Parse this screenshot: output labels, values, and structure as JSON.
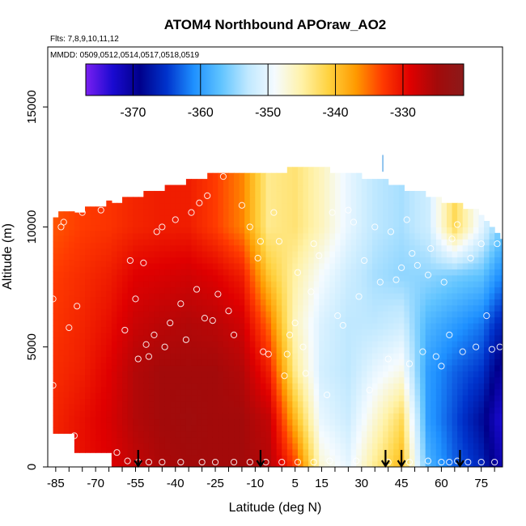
{
  "chart_data": {
    "type": "heatmap",
    "title": "ATOM4 Northbound APOraw_AO2",
    "flights_text": "Flts: 7,8,9,10,11,12",
    "dates_text": "MMDD: 0509,0512,0514,0517,0518,0519",
    "xlabel": "Latitude (deg N)",
    "ylabel": "Altitude (m)",
    "xlim": [
      -88,
      83
    ],
    "ylim": [
      0,
      17500
    ],
    "x_ticks": [
      -85,
      -70,
      -55,
      -40,
      -25,
      -10,
      5,
      15,
      30,
      45,
      60,
      75
    ],
    "y_ticks": [
      0,
      5000,
      10000,
      15000
    ],
    "colorbar": {
      "range": [
        -377,
        -321
      ],
      "ticks": [
        -370,
        -360,
        -350,
        -340,
        -330
      ],
      "colors": [
        "#7a1ff2",
        "#1a0ad0",
        "#00008b",
        "#0033cc",
        "#1e90ff",
        "#5fc3ff",
        "#bfe8ff",
        "#f5fbff",
        "#fff2a8",
        "#ffd23f",
        "#ff9a00",
        "#ff3a00",
        "#e00000",
        "#a30a0a",
        "#8b1a1a"
      ]
    },
    "profiles": [
      {
        "lat": -85,
        "top": 10500,
        "values": [
          -331,
          -331.5,
          -332,
          -332.5,
          -333,
          -334
        ]
      },
      {
        "lat": -75,
        "top": 10700,
        "values": [
          -330,
          -330,
          -331,
          -331.5,
          -332,
          -333
        ]
      },
      {
        "lat": -65,
        "top": 11000,
        "values": [
          -329,
          -328.5,
          -329,
          -330,
          -331,
          -332.5
        ]
      },
      {
        "lat": -55,
        "top": 11300,
        "values": [
          -327,
          -326,
          -326,
          -327.5,
          -329,
          -331.5
        ]
      },
      {
        "lat": -45,
        "top": 11600,
        "values": [
          -325.5,
          -325,
          -325,
          -326.5,
          -328.5,
          -331
        ]
      },
      {
        "lat": -35,
        "top": 11900,
        "values": [
          -325,
          -324.5,
          -325,
          -326,
          -328,
          -331
        ]
      },
      {
        "lat": -25,
        "top": 12200,
        "values": [
          -325,
          -325,
          -325,
          -326.5,
          -329,
          -333
        ]
      },
      {
        "lat": -15,
        "top": 12200,
        "values": [
          -325,
          -325,
          -326,
          -328,
          -331,
          -336
        ]
      },
      {
        "lat": -5,
        "top": 12300,
        "values": [
          -326,
          -327,
          -331,
          -335,
          -340,
          -344
        ]
      },
      {
        "lat": 5,
        "top": 12400,
        "values": [
          -333,
          -339,
          -344,
          -346,
          -345,
          -343
        ]
      },
      {
        "lat": 15,
        "top": 12400,
        "values": [
          -347,
          -350,
          -351.5,
          -351,
          -349,
          -346
        ]
      },
      {
        "lat": 25,
        "top": 12300,
        "values": [
          -350,
          -352,
          -353,
          -353,
          -352,
          -350
        ]
      },
      {
        "lat": 35,
        "top": 12000,
        "values": [
          -344,
          -347,
          -350,
          -353,
          -354,
          -353
        ]
      },
      {
        "lat": 45,
        "top": 11700,
        "values": [
          -339,
          -342,
          -348,
          -352,
          -355,
          -354
        ]
      },
      {
        "lat": 55,
        "top": 11300,
        "values": [
          -358,
          -360,
          -360,
          -358,
          -355,
          -352
        ]
      },
      {
        "lat": 65,
        "top": 11000,
        "values": [
          -363,
          -364,
          -363,
          -360,
          -356,
          -342
        ]
      },
      {
        "lat": 75,
        "top": 10600,
        "values": [
          -366,
          -368,
          -365,
          -362,
          -357,
          -350
        ]
      },
      {
        "lat": 82,
        "top": 9500,
        "values": [
          -371,
          -373,
          -370,
          -366,
          -361,
          -356
        ]
      }
    ],
    "profile_altitudes": [
      0,
      2000,
      4000,
      6000,
      8000,
      10000
    ],
    "observations": [
      [
        -86,
        7000
      ],
      [
        -86,
        3400
      ],
      [
        -83,
        10000
      ],
      [
        -82,
        10200
      ],
      [
        -80,
        5800
      ],
      [
        -77,
        6700
      ],
      [
        -78,
        1300
      ],
      [
        -75,
        10600
      ],
      [
        -72,
        11200
      ],
      [
        -71,
        11400
      ],
      [
        -68,
        10700
      ],
      [
        -62,
        600
      ],
      [
        -59,
        5700
      ],
      [
        -57,
        8600
      ],
      [
        -55,
        7000
      ],
      [
        -54,
        4500
      ],
      [
        -52,
        8500
      ],
      [
        -51,
        5100
      ],
      [
        -50,
        4600
      ],
      [
        -48,
        5500
      ],
      [
        -47,
        9800
      ],
      [
        -45,
        10000
      ],
      [
        -44,
        5000
      ],
      [
        -42,
        6000
      ],
      [
        -40,
        10300
      ],
      [
        -38,
        6800
      ],
      [
        -36,
        5300
      ],
      [
        -34,
        10600
      ],
      [
        -32,
        7400
      ],
      [
        -31,
        11000
      ],
      [
        -29,
        6200
      ],
      [
        -28,
        11300
      ],
      [
        -26,
        6100
      ],
      [
        -24,
        7200
      ],
      [
        -22,
        12100
      ],
      [
        -20,
        6500
      ],
      [
        -18,
        5500
      ],
      [
        -15,
        10900
      ],
      [
        -12,
        10000
      ],
      [
        -9,
        8700
      ],
      [
        -8,
        9400
      ],
      [
        -7,
        4800
      ],
      [
        -5,
        4700
      ],
      [
        -3,
        10600
      ],
      [
        -1,
        9400
      ],
      [
        1,
        3800
      ],
      [
        2,
        4700
      ],
      [
        3,
        5500
      ],
      [
        5,
        6000
      ],
      [
        6,
        8100
      ],
      [
        8,
        5000
      ],
      [
        9,
        3900
      ],
      [
        11,
        7300
      ],
      [
        12,
        9300
      ],
      [
        14,
        8800
      ],
      [
        17,
        3000
      ],
      [
        19,
        10600
      ],
      [
        21,
        6300
      ],
      [
        23,
        5900
      ],
      [
        25,
        10700
      ],
      [
        27,
        10200
      ],
      [
        29,
        7100
      ],
      [
        31,
        8600
      ],
      [
        33,
        3200
      ],
      [
        35,
        10000
      ],
      [
        37,
        7700
      ],
      [
        40,
        4500
      ],
      [
        41,
        9800
      ],
      [
        43,
        7800
      ],
      [
        45,
        8300
      ],
      [
        47,
        10300
      ],
      [
        48,
        4300
      ],
      [
        49,
        8900
      ],
      [
        51,
        8400
      ],
      [
        53,
        4800
      ],
      [
        55,
        8000
      ],
      [
        56,
        9100
      ],
      [
        58,
        4600
      ],
      [
        60,
        4200
      ],
      [
        61,
        7700
      ],
      [
        63,
        5500
      ],
      [
        64,
        9500
      ],
      [
        66,
        10100
      ],
      [
        68,
        4800
      ],
      [
        69,
        11200
      ],
      [
        71,
        8700
      ],
      [
        73,
        5000
      ],
      [
        75,
        9300
      ],
      [
        77,
        6300
      ],
      [
        79,
        4900
      ],
      [
        81,
        9300
      ],
      [
        82,
        5000
      ],
      [
        -58,
        250
      ],
      [
        -54,
        200
      ],
      [
        -50,
        200
      ],
      [
        -45,
        200
      ],
      [
        -38,
        200
      ],
      [
        -30,
        200
      ],
      [
        -25,
        200
      ],
      [
        -18,
        200
      ],
      [
        -12,
        200
      ],
      [
        -6,
        200
      ],
      [
        0,
        200
      ],
      [
        6,
        200
      ],
      [
        12,
        200
      ],
      [
        18,
        250
      ],
      [
        28,
        250
      ],
      [
        40,
        200
      ],
      [
        48,
        200
      ],
      [
        55,
        250
      ],
      [
        60,
        200
      ],
      [
        63,
        200
      ],
      [
        66,
        250
      ],
      [
        70,
        200
      ],
      [
        75,
        200
      ],
      [
        80,
        200
      ]
    ],
    "arrow_latitudes": [
      -54,
      -8,
      39,
      45,
      67
    ],
    "spike": {
      "lat": 38,
      "alt_from": 12300,
      "alt_to": 13000
    }
  }
}
